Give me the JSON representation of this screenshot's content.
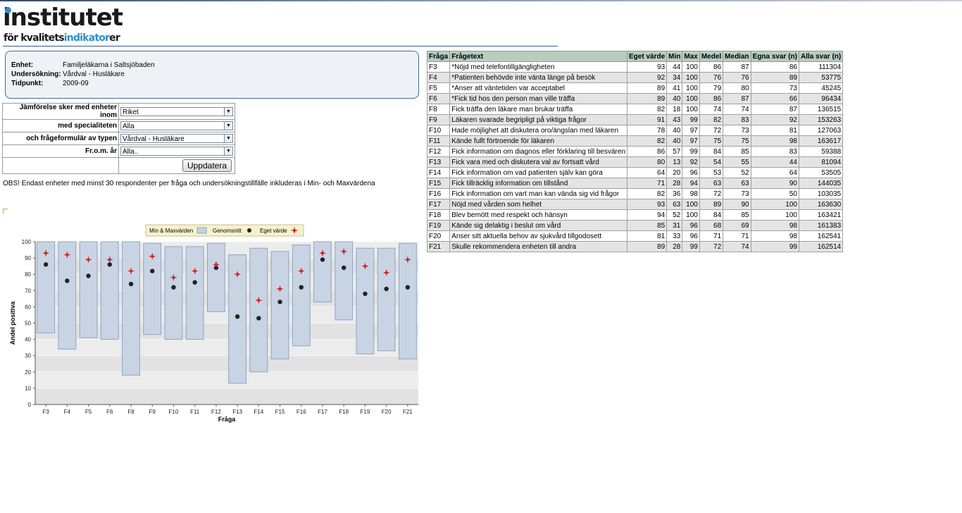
{
  "logo": {
    "main": "institutet",
    "sub_a": "för kvalitets",
    "sub_b": "indikator",
    "sub_c": "er"
  },
  "info": {
    "enhet_label": "Enhet:",
    "enhet": "Familjeläkarna i Saltsjöbaden",
    "undersokning_label": "Undersökning:",
    "undersokning": "Vårdval - Husläkare",
    "tidpunkt_label": "Tidpunkt:",
    "tidpunkt": "2009-09"
  },
  "filters": [
    {
      "label": "Jämförelse sker med enheter inom",
      "value": "Riket"
    },
    {
      "label": "med specialiteten",
      "value": "Alla"
    },
    {
      "label": "och frågeformulär av typen",
      "value": "Vårdval - Husläkare"
    },
    {
      "label": "Fr.o.m. år",
      "value": "Alla.."
    }
  ],
  "update_button": "Uppdatera",
  "note": "OBS! Endast enheter med minst 30 respondenter per fråga och undersökningstillfälle inkluderas i Min- och Maxvärdena",
  "table": {
    "headers": [
      "Fråga",
      "Frågetext",
      "Eget värde",
      "Min",
      "Max",
      "Medel",
      "Median",
      "Egna svar (n)",
      "Alla svar (n)"
    ],
    "rows": [
      [
        "F3",
        "*Nöjd med telefontillgängligheten",
        "93",
        "44",
        "100",
        "86",
        "87",
        "86",
        "111304"
      ],
      [
        "F4",
        "*Patienten behövde inte vänta länge på besök",
        "92",
        "34",
        "100",
        "76",
        "76",
        "89",
        "53775"
      ],
      [
        "F5",
        "*Anser att väntetiden var acceptabel",
        "89",
        "41",
        "100",
        "79",
        "80",
        "73",
        "45245"
      ],
      [
        "F6",
        "*Fick tid hos den person man ville träffa",
        "89",
        "40",
        "100",
        "86",
        "87",
        "66",
        "96434"
      ],
      [
        "F8",
        "Fick träffa den läkare man brukar träffa",
        "82",
        "18",
        "100",
        "74",
        "74",
        "87",
        "136515"
      ],
      [
        "F9",
        "Läkaren svarade begripligt på viktiga frågor",
        "91",
        "43",
        "99",
        "82",
        "83",
        "92",
        "153263"
      ],
      [
        "F10",
        "Hade möjlighet att diskutera oro/ängslan med läkaren",
        "78",
        "40",
        "97",
        "72",
        "73",
        "81",
        "127063"
      ],
      [
        "F11",
        "Kände fullt förtroende för läkaren",
        "82",
        "40",
        "97",
        "75",
        "75",
        "98",
        "163617"
      ],
      [
        "F12",
        "Fick information om diagnos eller förklaring till besvären",
        "86",
        "57",
        "99",
        "84",
        "85",
        "83",
        "59388"
      ],
      [
        "F13",
        "Fick vara med och diskutera val av fortsatt vård",
        "80",
        "13",
        "92",
        "54",
        "55",
        "44",
        "81094"
      ],
      [
        "F14",
        "Fick information om vad patienten själv kan göra",
        "64",
        "20",
        "96",
        "53",
        "52",
        "64",
        "53505"
      ],
      [
        "F15",
        "Fick tillräcklig information om tillstånd",
        "71",
        "28",
        "94",
        "63",
        "63",
        "90",
        "144035"
      ],
      [
        "F16",
        "Fick information om vart man kan vända sig vid frågor",
        "82",
        "36",
        "98",
        "72",
        "73",
        "50",
        "103035"
      ],
      [
        "F17",
        "Nöjd med vården som helhet",
        "93",
        "63",
        "100",
        "89",
        "90",
        "100",
        "163630"
      ],
      [
        "F18",
        "Blev bemött med respekt och hänsyn",
        "94",
        "52",
        "100",
        "84",
        "85",
        "100",
        "163421"
      ],
      [
        "F19",
        "Kände sig delaktig i beslut om vård",
        "85",
        "31",
        "96",
        "68",
        "69",
        "98",
        "161383"
      ],
      [
        "F20",
        "Anser sitt aktuella behov av sjukvård tillgodosett",
        "81",
        "33",
        "96",
        "71",
        "71",
        "98",
        "162541"
      ],
      [
        "F21",
        "Skulle rekommendera enheten till andra",
        "89",
        "28",
        "99",
        "72",
        "74",
        "99",
        "162514"
      ]
    ]
  },
  "chart_data": {
    "type": "bar",
    "categories": [
      "F3",
      "F4",
      "F5",
      "F6",
      "F8",
      "F9",
      "F10",
      "F11",
      "F12",
      "F13",
      "F14",
      "F15",
      "F16",
      "F17",
      "F18",
      "F19",
      "F20",
      "F21"
    ],
    "series": [
      {
        "name": "Min & Maxvärden",
        "min": [
          44,
          34,
          41,
          40,
          18,
          43,
          40,
          40,
          57,
          13,
          20,
          28,
          36,
          63,
          52,
          31,
          33,
          28
        ],
        "max": [
          100,
          100,
          100,
          100,
          100,
          99,
          97,
          97,
          99,
          92,
          96,
          94,
          98,
          100,
          100,
          96,
          96,
          99
        ]
      },
      {
        "name": "Genomsnitt",
        "values": [
          86,
          76,
          79,
          86,
          74,
          82,
          72,
          75,
          84,
          54,
          53,
          63,
          72,
          89,
          84,
          68,
          71,
          72
        ]
      },
      {
        "name": "Eget värde",
        "values": [
          93,
          92,
          89,
          89,
          82,
          91,
          78,
          82,
          86,
          80,
          64,
          71,
          82,
          93,
          94,
          85,
          81,
          89
        ]
      }
    ],
    "xlabel": "Fråga",
    "ylabel": "Andel positiva",
    "ylim": [
      0,
      100
    ],
    "yticks": [
      0,
      10,
      20,
      30,
      40,
      50,
      60,
      70,
      80,
      90,
      100
    ],
    "grid": true,
    "legend_position": "top",
    "colors": {
      "range_fill": "#c8d4e4",
      "range_stroke": "#90a4c0",
      "mean": "#222222",
      "own": "#d42020"
    }
  }
}
